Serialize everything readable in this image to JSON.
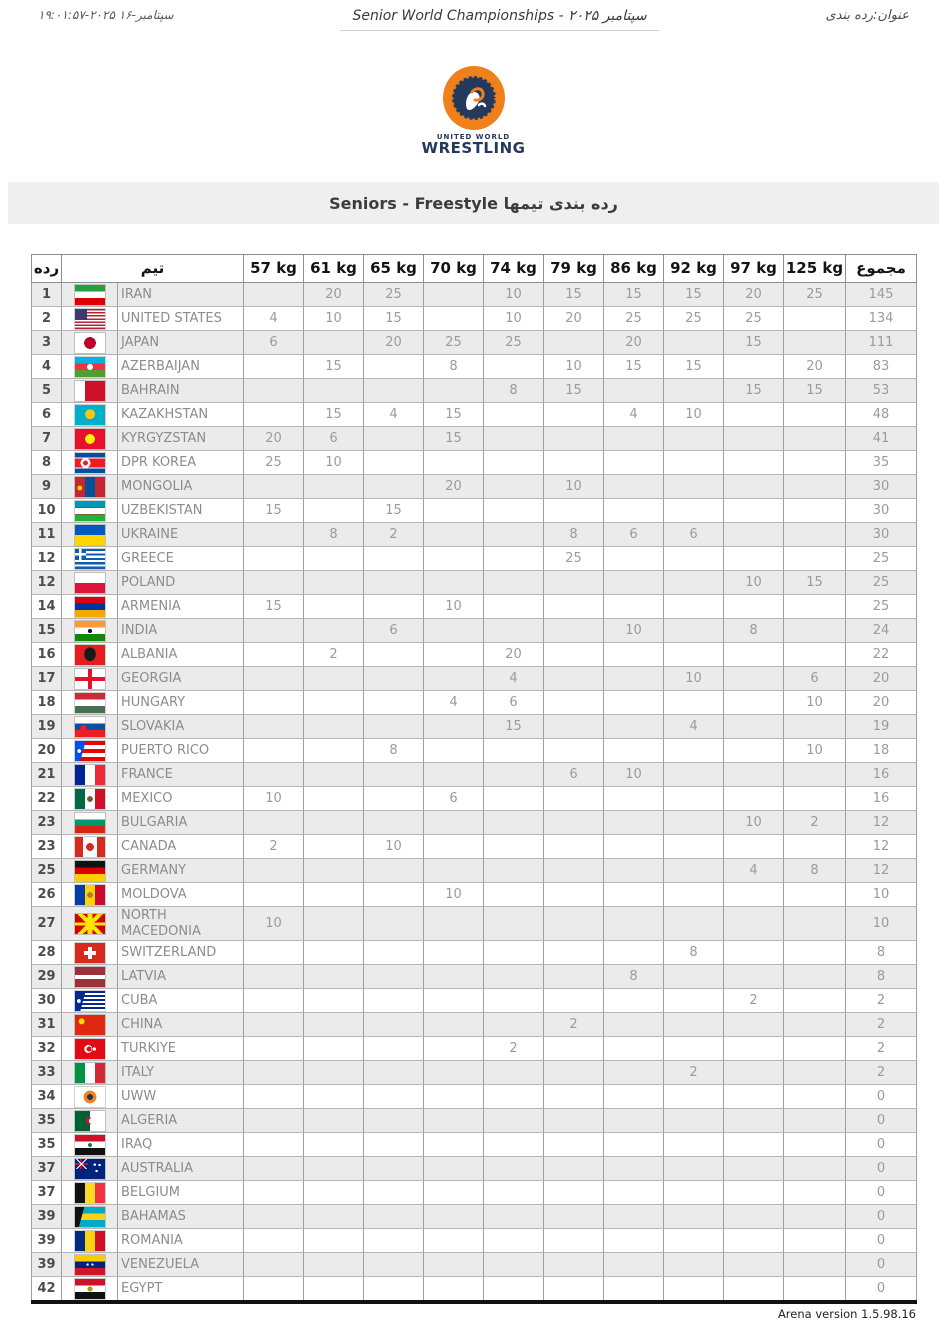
{
  "header": {
    "datetime": "سپتامبر-۱۶ ۲۰۲۵-۱۹:۰۱:۵۷",
    "title_en": "Senior World Championships -",
    "title_fa": "سپتامبر ۲۰۲۵",
    "label": "عنوان:رده بندی"
  },
  "logo": {
    "word1": "UNITED WORLD",
    "word2": "WRESTLING"
  },
  "banner": {
    "title": "Seniors - Freestyle رده بندی تیمها"
  },
  "table": {
    "headers": {
      "rank": "رده",
      "team": "تیم",
      "weights": [
        "57 kg",
        "61 kg",
        "65 kg",
        "70 kg",
        "74 kg",
        "79 kg",
        "86 kg",
        "92 kg",
        "97 kg",
        "125 kg"
      ],
      "total": "مجموع"
    },
    "rows": [
      {
        "rank": "1",
        "team": "IRAN",
        "flag": "ir",
        "scores": [
          "",
          "20",
          "25",
          "",
          "10",
          "15",
          "15",
          "15",
          "20",
          "25"
        ],
        "total": "145"
      },
      {
        "rank": "2",
        "team": "UNITED STATES",
        "flag": "us",
        "scores": [
          "4",
          "10",
          "15",
          "",
          "10",
          "20",
          "25",
          "25",
          "25",
          ""
        ],
        "total": "134"
      },
      {
        "rank": "3",
        "team": "JAPAN",
        "flag": "jp",
        "scores": [
          "6",
          "",
          "20",
          "25",
          "25",
          "",
          "20",
          "",
          "15",
          ""
        ],
        "total": "111"
      },
      {
        "rank": "4",
        "team": "AZERBAIJAN",
        "flag": "az",
        "scores": [
          "",
          "15",
          "",
          "8",
          "",
          "10",
          "15",
          "15",
          "",
          "20"
        ],
        "total": "83"
      },
      {
        "rank": "5",
        "team": "BAHRAIN",
        "flag": "bh",
        "scores": [
          "",
          "",
          "",
          "",
          "8",
          "15",
          "",
          "",
          "15",
          "15"
        ],
        "total": "53"
      },
      {
        "rank": "6",
        "team": "KAZAKHSTAN",
        "flag": "kz",
        "scores": [
          "",
          "15",
          "4",
          "15",
          "",
          "",
          "4",
          "10",
          "",
          ""
        ],
        "total": "48"
      },
      {
        "rank": "7",
        "team": "KYRGYZSTAN",
        "flag": "kg",
        "scores": [
          "20",
          "6",
          "",
          "15",
          "",
          "",
          "",
          "",
          "",
          ""
        ],
        "total": "41"
      },
      {
        "rank": "8",
        "team": "DPR KOREA",
        "flag": "kp",
        "scores": [
          "25",
          "10",
          "",
          "",
          "",
          "",
          "",
          "",
          "",
          ""
        ],
        "total": "35"
      },
      {
        "rank": "9",
        "team": "MONGOLIA",
        "flag": "mn",
        "scores": [
          "",
          "",
          "",
          "20",
          "",
          "10",
          "",
          "",
          "",
          ""
        ],
        "total": "30"
      },
      {
        "rank": "10",
        "team": "UZBEKISTAN",
        "flag": "uz",
        "scores": [
          "15",
          "",
          "15",
          "",
          "",
          "",
          "",
          "",
          "",
          ""
        ],
        "total": "30"
      },
      {
        "rank": "11",
        "team": "UKRAINE",
        "flag": "ua",
        "scores": [
          "",
          "8",
          "2",
          "",
          "",
          "8",
          "6",
          "6",
          "",
          ""
        ],
        "total": "30"
      },
      {
        "rank": "12",
        "team": "GREECE",
        "flag": "gr",
        "scores": [
          "",
          "",
          "",
          "",
          "",
          "25",
          "",
          "",
          "",
          ""
        ],
        "total": "25"
      },
      {
        "rank": "12",
        "team": "POLAND",
        "flag": "pl",
        "scores": [
          "",
          "",
          "",
          "",
          "",
          "",
          "",
          "",
          "10",
          "15"
        ],
        "total": "25"
      },
      {
        "rank": "14",
        "team": "ARMENIA",
        "flag": "am",
        "scores": [
          "15",
          "",
          "",
          "10",
          "",
          "",
          "",
          "",
          "",
          ""
        ],
        "total": "25"
      },
      {
        "rank": "15",
        "team": "INDIA",
        "flag": "in",
        "scores": [
          "",
          "",
          "6",
          "",
          "",
          "",
          "10",
          "",
          "8",
          ""
        ],
        "total": "24"
      },
      {
        "rank": "16",
        "team": "ALBANIA",
        "flag": "al",
        "scores": [
          "",
          "2",
          "",
          "",
          "20",
          "",
          "",
          "",
          "",
          ""
        ],
        "total": "22"
      },
      {
        "rank": "17",
        "team": "GEORGIA",
        "flag": "ge",
        "scores": [
          "",
          "",
          "",
          "",
          "4",
          "",
          "",
          "10",
          "",
          "6"
        ],
        "total": "20"
      },
      {
        "rank": "18",
        "team": "HUNGARY",
        "flag": "hu",
        "scores": [
          "",
          "",
          "",
          "4",
          "6",
          "",
          "",
          "",
          "",
          "10"
        ],
        "total": "20"
      },
      {
        "rank": "19",
        "team": "SLOVAKIA",
        "flag": "sk",
        "scores": [
          "",
          "",
          "",
          "",
          "15",
          "",
          "",
          "4",
          "",
          ""
        ],
        "total": "19"
      },
      {
        "rank": "20",
        "team": "PUERTO RICO",
        "flag": "pr",
        "scores": [
          "",
          "",
          "8",
          "",
          "",
          "",
          "",
          "",
          "",
          "10"
        ],
        "total": "18"
      },
      {
        "rank": "21",
        "team": "FRANCE",
        "flag": "fr",
        "scores": [
          "",
          "",
          "",
          "",
          "",
          "6",
          "10",
          "",
          "",
          ""
        ],
        "total": "16"
      },
      {
        "rank": "22",
        "team": "MEXICO",
        "flag": "mx",
        "scores": [
          "10",
          "",
          "",
          "6",
          "",
          "",
          "",
          "",
          "",
          ""
        ],
        "total": "16"
      },
      {
        "rank": "23",
        "team": "BULGARIA",
        "flag": "bg",
        "scores": [
          "",
          "",
          "",
          "",
          "",
          "",
          "",
          "",
          "10",
          "2"
        ],
        "total": "12"
      },
      {
        "rank": "23",
        "team": "CANADA",
        "flag": "ca",
        "scores": [
          "2",
          "",
          "10",
          "",
          "",
          "",
          "",
          "",
          "",
          ""
        ],
        "total": "12"
      },
      {
        "rank": "25",
        "team": "GERMANY",
        "flag": "de",
        "scores": [
          "",
          "",
          "",
          "",
          "",
          "",
          "",
          "",
          "4",
          "8"
        ],
        "total": "12"
      },
      {
        "rank": "26",
        "team": "MOLDOVA",
        "flag": "md",
        "scores": [
          "",
          "",
          "",
          "10",
          "",
          "",
          "",
          "",
          "",
          ""
        ],
        "total": "10"
      },
      {
        "rank": "27",
        "team": "NORTH MACEDONIA",
        "flag": "mk",
        "scores": [
          "10",
          "",
          "",
          "",
          "",
          "",
          "",
          "",
          "",
          ""
        ],
        "total": "10"
      },
      {
        "rank": "28",
        "team": "SWITZERLAND",
        "flag": "ch",
        "scores": [
          "",
          "",
          "",
          "",
          "",
          "",
          "",
          "8",
          "",
          ""
        ],
        "total": "8"
      },
      {
        "rank": "29",
        "team": "LATVIA",
        "flag": "lv",
        "scores": [
          "",
          "",
          "",
          "",
          "",
          "",
          "8",
          "",
          "",
          ""
        ],
        "total": "8"
      },
      {
        "rank": "30",
        "team": "CUBA",
        "flag": "cu",
        "scores": [
          "",
          "",
          "",
          "",
          "",
          "",
          "",
          "",
          "2",
          ""
        ],
        "total": "2"
      },
      {
        "rank": "31",
        "team": "CHINA",
        "flag": "cn",
        "scores": [
          "",
          "",
          "",
          "",
          "",
          "2",
          "",
          "",
          "",
          ""
        ],
        "total": "2"
      },
      {
        "rank": "32",
        "team": "TURKIYE",
        "flag": "tr",
        "scores": [
          "",
          "",
          "",
          "",
          "2",
          "",
          "",
          "",
          "",
          ""
        ],
        "total": "2"
      },
      {
        "rank": "33",
        "team": "ITALY",
        "flag": "it",
        "scores": [
          "",
          "",
          "",
          "",
          "",
          "",
          "",
          "2",
          "",
          ""
        ],
        "total": "2"
      },
      {
        "rank": "34",
        "team": "UWW",
        "flag": "uww",
        "scores": [
          "",
          "",
          "",
          "",
          "",
          "",
          "",
          "",
          "",
          ""
        ],
        "total": "0"
      },
      {
        "rank": "35",
        "team": "ALGERIA",
        "flag": "dz",
        "scores": [
          "",
          "",
          "",
          "",
          "",
          "",
          "",
          "",
          "",
          ""
        ],
        "total": "0"
      },
      {
        "rank": "35",
        "team": "IRAQ",
        "flag": "iq",
        "scores": [
          "",
          "",
          "",
          "",
          "",
          "",
          "",
          "",
          "",
          ""
        ],
        "total": "0"
      },
      {
        "rank": "37",
        "team": "AUSTRALIA",
        "flag": "au",
        "scores": [
          "",
          "",
          "",
          "",
          "",
          "",
          "",
          "",
          "",
          ""
        ],
        "total": "0"
      },
      {
        "rank": "37",
        "team": "BELGIUM",
        "flag": "be",
        "scores": [
          "",
          "",
          "",
          "",
          "",
          "",
          "",
          "",
          "",
          ""
        ],
        "total": "0"
      },
      {
        "rank": "39",
        "team": "BAHAMAS",
        "flag": "bs",
        "scores": [
          "",
          "",
          "",
          "",
          "",
          "",
          "",
          "",
          "",
          ""
        ],
        "total": "0"
      },
      {
        "rank": "39",
        "team": "ROMANIA",
        "flag": "ro",
        "scores": [
          "",
          "",
          "",
          "",
          "",
          "",
          "",
          "",
          "",
          ""
        ],
        "total": "0"
      },
      {
        "rank": "39",
        "team": "VENEZUELA",
        "flag": "ve",
        "scores": [
          "",
          "",
          "",
          "",
          "",
          "",
          "",
          "",
          "",
          ""
        ],
        "total": "0"
      },
      {
        "rank": "42",
        "team": "EGYPT",
        "flag": "eg",
        "scores": [
          "",
          "",
          "",
          "",
          "",
          "",
          "",
          "",
          "",
          ""
        ],
        "total": "0"
      }
    ]
  },
  "footer": {
    "version": "Arena version 1.5.98.16"
  },
  "colors": {
    "accent_orange": "#f08019",
    "logo_navy": "#23395d",
    "banner_bg": "#efefef",
    "row_stripe": "#ebebeb"
  }
}
